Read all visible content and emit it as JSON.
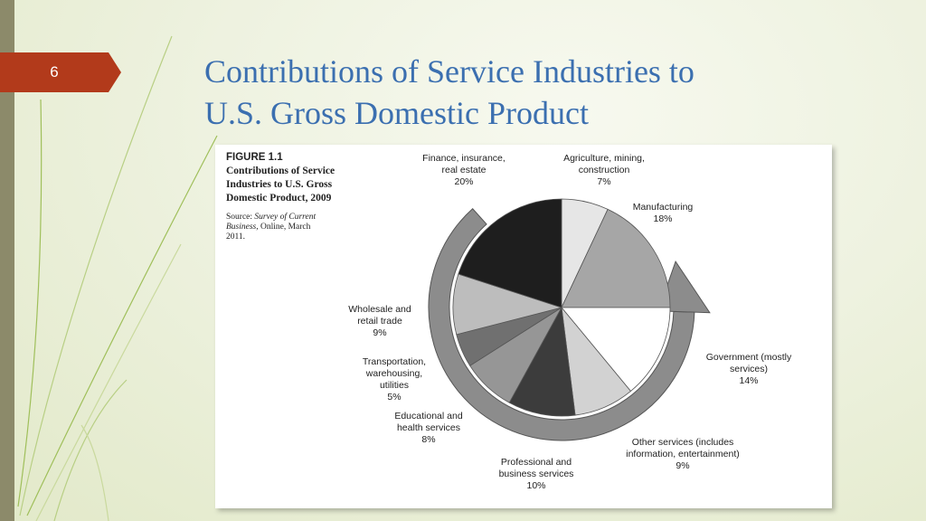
{
  "slide": {
    "page_number": "6",
    "title_lines": [
      "Contributions of Service Industries to",
      "U.S. Gross Domestic Product"
    ]
  },
  "figure": {
    "label": "FIGURE 1.1",
    "title": "Contributions of Service Industries to U.S. Gross Domestic Product, 2009",
    "source_prefix": "Source: ",
    "source_italic": "Survey of Current Business,",
    "source_rest": " Online, March 2011."
  },
  "colors": {
    "accent_blue": "#3b6fb0",
    "tab_red": "#b23a1b",
    "ring_gray": "#8c8c8c"
  },
  "chart_data": {
    "type": "pie",
    "title": "",
    "unit": "%",
    "slices": [
      {
        "label_lines": [
          "Agriculture, mining,",
          "construction",
          "7%"
        ],
        "value": 7,
        "color": "#e6e6e6"
      },
      {
        "label_lines": [
          "Manufacturing",
          "18%"
        ],
        "value": 18,
        "color": "#a6a6a6"
      },
      {
        "label_lines": [
          "Government (mostly",
          "services)",
          "14%"
        ],
        "value": 14,
        "color": "#ffffff"
      },
      {
        "label_lines": [
          "Other services (includes",
          "information, entertainment)",
          "9%"
        ],
        "value": 9,
        "color": "#d2d2d2"
      },
      {
        "label_lines": [
          "Professional and",
          "business services",
          "10%"
        ],
        "value": 10,
        "color": "#3c3c3c"
      },
      {
        "label_lines": [
          "Educational and",
          "health services",
          "8%"
        ],
        "value": 8,
        "color": "#969696"
      },
      {
        "label_lines": [
          "Transportation,",
          "warehousing,",
          "utilities",
          "5%"
        ],
        "value": 5,
        "color": "#707070"
      },
      {
        "label_lines": [
          "Wholesale and",
          "retail trade",
          "9%"
        ],
        "value": 9,
        "color": "#bdbdbd"
      },
      {
        "label_lines": [
          "Finance, insurance,",
          "real estate",
          "20%"
        ],
        "value": 20,
        "color": "#1e1e1e"
      }
    ]
  }
}
